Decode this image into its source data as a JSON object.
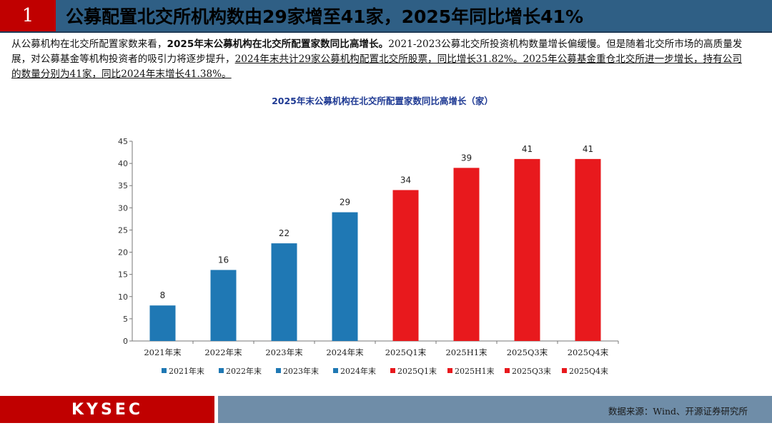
{
  "header": {
    "number": "1",
    "title": "公募配置北交所机构数由29家增至41家，2025年同比增长41%"
  },
  "summary": {
    "part1": "从公募机构在北交所配置家数来看，",
    "part2_bold": "2025年末公募机构在北交所配置家数同比高增长。",
    "part3": "2021-2023公募北交所投资机构数量增长偏缓慢。但是随着北交所市场的高质量发展，对公募基金等机构投资者的吸引力将逐步提升，",
    "part4_underline": "2024年末共计29家公募机构配置北交所股票，同比增长31.82%。2025年公募基金重仓北交所进一步增长，持有公司的数量分别为41家，同比2024年末增长41.38%。"
  },
  "chart_data": {
    "type": "bar",
    "title": "2025年末公募机构在北交所配置家数同比高增长（家）",
    "categories": [
      "2021年末",
      "2022年末",
      "2023年末",
      "2024年末",
      "2025Q1末",
      "2025H1末",
      "2025Q3末",
      "2025Q4末"
    ],
    "values": [
      8,
      16,
      22,
      29,
      34,
      39,
      41,
      41
    ],
    "colors": [
      "#1f78b4",
      "#1f78b4",
      "#1f78b4",
      "#1f78b4",
      "#e8191d",
      "#e8191d",
      "#e8191d",
      "#e8191d"
    ],
    "legend": [
      "2021年末",
      "2022年末",
      "2023年末",
      "2024年末",
      "2025Q1末",
      "2025H1末",
      "2025Q3末",
      "2025Q4末"
    ],
    "legend_position": "bottom",
    "ylim": [
      0,
      45
    ],
    "yticks": [
      0,
      5,
      10,
      15,
      20,
      25,
      30,
      35,
      40,
      45
    ],
    "xlabel": "",
    "ylabel": "",
    "title_color": "#1f3a93"
  },
  "footer": {
    "logo": "KYSEC",
    "source": "数据来源：Wind、开源证券研究所"
  }
}
